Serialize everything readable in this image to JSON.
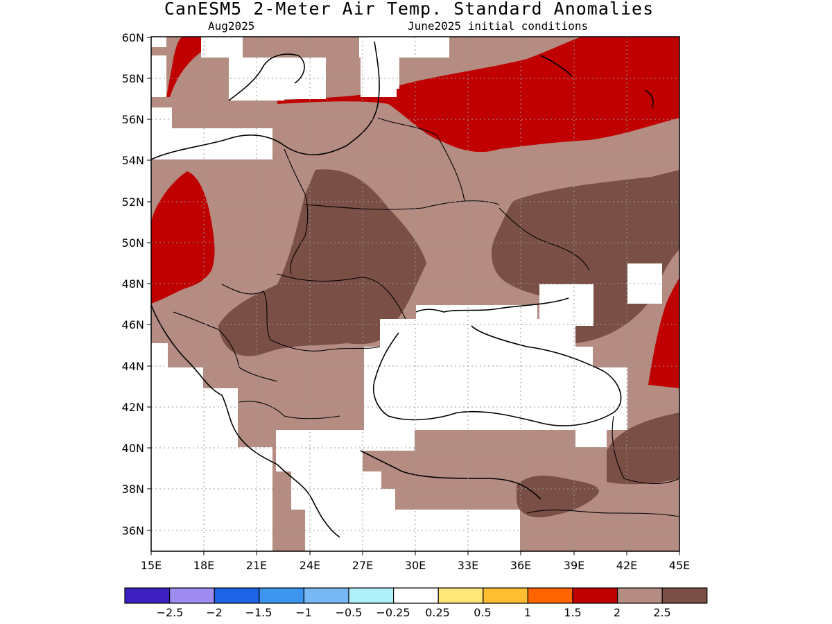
{
  "title": "CanESM5 2-Meter Air Temp. Standard Anomalies",
  "subtitle_left": "Aug2025",
  "subtitle_right": "June2025 initial conditions",
  "lat_ticks": [
    "60N",
    "58N",
    "56N",
    "54N",
    "52N",
    "50N",
    "48N",
    "46N",
    "44N",
    "42N",
    "40N",
    "38N",
    "36N"
  ],
  "lon_ticks": [
    "15E",
    "18E",
    "21E",
    "24E",
    "27E",
    "30E",
    "33E",
    "36E",
    "39E",
    "42E",
    "45E"
  ],
  "colorbar": {
    "colors": [
      "#3b1fbf",
      "#9f8cf0",
      "#1e64e6",
      "#3c96f0",
      "#78b8f5",
      "#b0f0fa",
      "#ffffff",
      "#ffe678",
      "#ffbe32",
      "#ff6400",
      "#c00000",
      "#b48c82",
      "#7a5046"
    ],
    "labels": [
      "−2.5",
      "−2",
      "−1.5",
      "−1",
      "−0.5",
      "−0.25",
      "0.25",
      "0.5",
      "1",
      "1.5",
      "2",
      "2.5"
    ]
  },
  "legend_colors": {
    "strong_warm": "#c00000",
    "warm_2": "#b48c82",
    "warm_2_5": "#7a5046"
  }
}
